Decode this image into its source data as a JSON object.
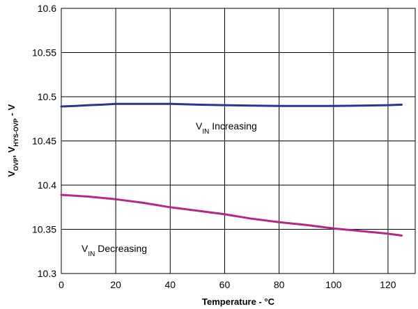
{
  "chart_data": {
    "type": "line",
    "title": "",
    "xlabel": "Temperature - °C",
    "ylabel": {
      "parts": [
        {
          "text": "V"
        },
        {
          "text": "OVP",
          "sub": true
        },
        {
          "text": ", V"
        },
        {
          "text": "HYS-OVP",
          "sub": true
        },
        {
          "text": " - V"
        }
      ]
    },
    "xlim": [
      0,
      130
    ],
    "ylim": [
      10.3,
      10.6
    ],
    "xticks": [
      0,
      20,
      40,
      60,
      80,
      100,
      120
    ],
    "yticks": [
      10.3,
      10.35,
      10.4,
      10.45,
      10.5,
      10.55,
      10.6
    ],
    "ytick_labels": [
      "10.3",
      "10.35",
      "10.4",
      "10.45",
      "10.5",
      "10.55",
      "10.6"
    ],
    "xtick_labels": [
      "0",
      "20",
      "40",
      "60",
      "80",
      "100",
      "120"
    ],
    "grid": true,
    "series": [
      {
        "key": "increasing",
        "label_parts": [
          {
            "text": "V"
          },
          {
            "text": "IN",
            "sub": true
          },
          {
            "text": " Increasing"
          }
        ],
        "color": "#2b3590",
        "x": [
          0,
          5,
          10,
          15,
          20,
          30,
          40,
          50,
          60,
          70,
          80,
          90,
          100,
          110,
          120,
          125
        ],
        "y": [
          10.489,
          10.4895,
          10.4905,
          10.491,
          10.492,
          10.492,
          10.492,
          10.491,
          10.4905,
          10.49,
          10.4895,
          10.4895,
          10.4895,
          10.49,
          10.4905,
          10.491
        ]
      },
      {
        "key": "decreasing",
        "label_parts": [
          {
            "text": "V"
          },
          {
            "text": "IN",
            "sub": true
          },
          {
            "text": " Decreasing"
          }
        ],
        "color": "#b3268a",
        "x": [
          0,
          5,
          10,
          20,
          30,
          40,
          50,
          60,
          70,
          80,
          90,
          100,
          110,
          120,
          125
        ],
        "y": [
          10.389,
          10.388,
          10.387,
          10.384,
          10.38,
          10.375,
          10.371,
          10.367,
          10.362,
          10.358,
          10.355,
          10.351,
          10.348,
          10.345,
          10.343
        ]
      }
    ]
  }
}
